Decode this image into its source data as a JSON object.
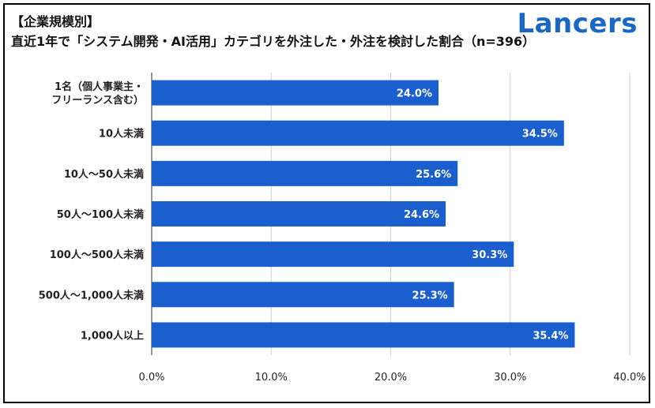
{
  "header": {
    "title_line1": "【企業規模別】",
    "title_line2": "直近1年で「システム開発・AI活用」カテゴリを外注した・外注を検討した割合（n=396）"
  },
  "brand": {
    "logo_text": "Lancers",
    "color": "#1b67c4"
  },
  "chart_data": {
    "type": "bar",
    "orientation": "horizontal",
    "categories": [
      [
        "1名（個人事業主・",
        "フリーランス含む）"
      ],
      [
        "10人未満"
      ],
      [
        "10人～50人未満"
      ],
      [
        "50人～100人未満"
      ],
      [
        "100人～500人未満"
      ],
      [
        "500人～1,000人未満"
      ],
      [
        "1,000人以上"
      ]
    ],
    "values": [
      24.0,
      34.5,
      25.6,
      24.6,
      30.3,
      25.3,
      35.4
    ],
    "value_labels": [
      "24.0%",
      "34.5%",
      "25.6%",
      "24.6%",
      "30.3%",
      "25.3%",
      "35.4%"
    ],
    "xlim": [
      0,
      40
    ],
    "x_ticks": [
      0,
      10,
      20,
      30,
      40
    ],
    "x_tick_labels": [
      "0.0%",
      "10.0%",
      "20.0%",
      "30.0%",
      "40.0%"
    ],
    "bar_color": "#1b5fcf",
    "grid": true,
    "legend": "none"
  }
}
